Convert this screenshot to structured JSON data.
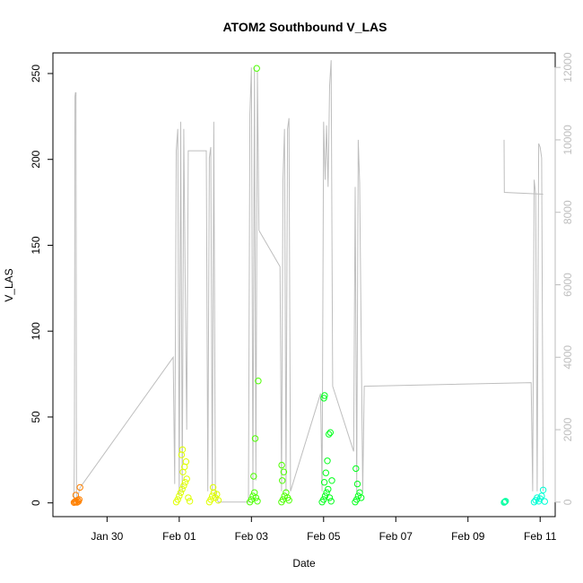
{
  "chart_data": {
    "type": "scatter",
    "title": "ATOM2 Southbound V_LAS",
    "xlabel": "Date",
    "ylabel": "V_LAS",
    "x_unit": "date",
    "xlim": [
      "2020-01-28T12:00",
      "2020-02-11T10:00"
    ],
    "ylim": [
      -8,
      262
    ],
    "y_ticks": [
      0,
      50,
      100,
      150,
      200,
      250
    ],
    "x_ticks": [
      {
        "date": "2020-01-30",
        "label": "Jan 30"
      },
      {
        "date": "2020-02-01",
        "label": "Feb 01"
      },
      {
        "date": "2020-02-03",
        "label": "Feb 03"
      },
      {
        "date": "2020-02-05",
        "label": "Feb 05"
      },
      {
        "date": "2020-02-07",
        "label": "Feb 07"
      },
      {
        "date": "2020-02-09",
        "label": "Feb 09"
      },
      {
        "date": "2020-02-11",
        "label": "Feb 11"
      }
    ],
    "y2lim": [
      -400,
      12400
    ],
    "y2_ticks": [
      0,
      2000,
      4000,
      6000,
      8000,
      10000,
      12000
    ],
    "grid": false,
    "legend": "none",
    "series": [
      {
        "color": "#ff8000",
        "marker": "open-circle",
        "points": [
          [
            "2020-01-29T02:00",
            0.2
          ],
          [
            "2020-01-29T02:30",
            0.6
          ],
          [
            "2020-01-29T03:00",
            0.4
          ],
          [
            "2020-01-29T03:30",
            1.0
          ],
          [
            "2020-01-29T04:00",
            0.3
          ],
          [
            "2020-01-29T04:30",
            1.6
          ],
          [
            "2020-01-29T05:00",
            0.8
          ],
          [
            "2020-01-29T05:30",
            2.0
          ],
          [
            "2020-01-29T03:10",
            4.5
          ],
          [
            "2020-01-29T06:00",
            9.0
          ]
        ]
      },
      {
        "color": "#dfff00",
        "marker": "open-circle",
        "points": [
          [
            "2020-01-31T22:00",
            0.5
          ],
          [
            "2020-01-31T23:00",
            2.0
          ],
          [
            "2020-02-01T00:00",
            4.0
          ],
          [
            "2020-02-01T01:00",
            6.0
          ],
          [
            "2020-02-01T02:00",
            8.0
          ],
          [
            "2020-02-01T03:00",
            10.0
          ],
          [
            "2020-02-01T04:00",
            12.0
          ],
          [
            "2020-02-01T05:00",
            14.0
          ],
          [
            "2020-02-01T06:00",
            3.0
          ],
          [
            "2020-02-01T02:30",
            18.0
          ],
          [
            "2020-02-01T03:30",
            21.0
          ],
          [
            "2020-02-01T04:30",
            24.0
          ],
          [
            "2020-02-01T01:30",
            28.0
          ],
          [
            "2020-02-01T02:10",
            31.0
          ],
          [
            "2020-02-01T07:00",
            1.0
          ],
          [
            "2020-02-01T20:00",
            0.5
          ],
          [
            "2020-02-01T21:00",
            2.0
          ],
          [
            "2020-02-01T22:00",
            4.0
          ],
          [
            "2020-02-01T23:00",
            6.0
          ],
          [
            "2020-02-02T00:00",
            3.0
          ],
          [
            "2020-02-02T01:00",
            5.0
          ],
          [
            "2020-02-02T02:00",
            1.5
          ],
          [
            "2020-02-01T22:30",
            9.0
          ]
        ]
      },
      {
        "color": "#4cff00",
        "marker": "open-circle",
        "points": [
          [
            "2020-02-02T23:00",
            0.5
          ],
          [
            "2020-02-03T00:00",
            2.0
          ],
          [
            "2020-02-03T01:00",
            4.0
          ],
          [
            "2020-02-03T02:00",
            6.0
          ],
          [
            "2020-02-03T03:00",
            3.0
          ],
          [
            "2020-02-03T04:00",
            1.0
          ],
          [
            "2020-02-03T01:30",
            15.5
          ],
          [
            "2020-02-03T02:30",
            37.5
          ],
          [
            "2020-02-03T04:30",
            71.0
          ],
          [
            "2020-02-03T03:30",
            253.0
          ],
          [
            "2020-02-03T20:00",
            0.5
          ],
          [
            "2020-02-03T21:00",
            2.0
          ],
          [
            "2020-02-03T22:00",
            4.0
          ],
          [
            "2020-02-03T23:00",
            6.0
          ],
          [
            "2020-02-04T00:00",
            3.0
          ],
          [
            "2020-02-04T01:00",
            1.5
          ],
          [
            "2020-02-03T20:30",
            13.0
          ],
          [
            "2020-02-03T21:30",
            18.0
          ],
          [
            "2020-02-03T20:10",
            22.0
          ]
        ]
      },
      {
        "color": "#00ff1a",
        "marker": "open-circle",
        "points": [
          [
            "2020-02-04T23:00",
            0.5
          ],
          [
            "2020-02-05T00:00",
            2.0
          ],
          [
            "2020-02-05T01:00",
            4.0
          ],
          [
            "2020-02-05T02:00",
            6.0
          ],
          [
            "2020-02-05T03:00",
            8.0
          ],
          [
            "2020-02-05T04:00",
            3.0
          ],
          [
            "2020-02-05T05:00",
            1.0
          ],
          [
            "2020-02-05T00:30",
            12.0
          ],
          [
            "2020-02-05T01:30",
            17.5
          ],
          [
            "2020-02-05T02:30",
            24.5
          ],
          [
            "2020-02-05T03:30",
            40.0
          ],
          [
            "2020-02-05T04:30",
            41.0
          ],
          [
            "2020-02-05T00:10",
            61.0
          ],
          [
            "2020-02-05T00:40",
            62.5
          ],
          [
            "2020-02-05T05:30",
            13.0
          ],
          [
            "2020-02-05T21:00",
            0.5
          ],
          [
            "2020-02-05T22:00",
            2.0
          ],
          [
            "2020-02-05T23:00",
            4.0
          ],
          [
            "2020-02-06T00:00",
            6.0
          ],
          [
            "2020-02-06T01:00",
            3.0
          ],
          [
            "2020-02-05T22:30",
            11.0
          ],
          [
            "2020-02-05T21:30",
            20.0
          ]
        ]
      },
      {
        "color": "#00ffa0",
        "marker": "open-circle",
        "points": [
          [
            "2020-02-10T00:00",
            0.3
          ],
          [
            "2020-02-10T00:30",
            0.6
          ],
          [
            "2020-02-10T01:00",
            1.0
          ]
        ]
      },
      {
        "color": "#00ffd5",
        "marker": "open-circle",
        "points": [
          [
            "2020-02-10T20:00",
            0.5
          ],
          [
            "2020-02-10T21:00",
            1.5
          ],
          [
            "2020-02-10T22:00",
            3.0
          ],
          [
            "2020-02-10T23:00",
            1.0
          ],
          [
            "2020-02-11T00:00",
            2.5
          ],
          [
            "2020-02-11T01:00",
            4.0
          ],
          [
            "2020-02-11T02:00",
            7.5
          ],
          [
            "2020-02-11T03:00",
            0.8
          ]
        ]
      }
    ],
    "secondary_line": {
      "color": "#bebebe",
      "axis": "right",
      "points": [
        [
          "2020-01-29T02:00",
          0
        ],
        [
          "2020-01-29T02:20",
          2000
        ],
        [
          "2020-01-29T02:40",
          11200
        ],
        [
          "2020-01-29T03:00",
          11300
        ],
        [
          "2020-01-29T03:20",
          11300
        ],
        [
          "2020-01-29T03:40",
          0
        ],
        [
          "2020-01-29T06:00",
          400
        ],
        [
          "2020-01-31T20:00",
          4000
        ],
        [
          "2020-01-31T21:00",
          500
        ],
        [
          "2020-01-31T22:00",
          9700
        ],
        [
          "2020-01-31T23:00",
          10300
        ],
        [
          "2020-02-01T00:00",
          200
        ],
        [
          "2020-02-01T01:00",
          10500
        ],
        [
          "2020-02-01T02:00",
          300
        ],
        [
          "2020-02-01T03:00",
          10300
        ],
        [
          "2020-02-01T04:00",
          6000
        ],
        [
          "2020-02-01T05:00",
          2000
        ],
        [
          "2020-02-01T06:00",
          9700
        ],
        [
          "2020-02-01T18:00",
          9700
        ],
        [
          "2020-02-01T19:00",
          300
        ],
        [
          "2020-02-01T20:00",
          9500
        ],
        [
          "2020-02-01T21:00",
          9800
        ],
        [
          "2020-02-01T22:00",
          300
        ],
        [
          "2020-02-01T23:00",
          10500
        ],
        [
          "2020-02-02T00:00",
          200
        ],
        [
          "2020-02-02T02:00",
          0
        ],
        [
          "2020-02-02T22:00",
          0
        ],
        [
          "2020-02-02T23:00",
          10700
        ],
        [
          "2020-02-03T00:00",
          12000
        ],
        [
          "2020-02-03T01:00",
          300
        ],
        [
          "2020-02-03T02:00",
          12000
        ],
        [
          "2020-02-03T03:00",
          600
        ],
        [
          "2020-02-03T04:00",
          11900
        ],
        [
          "2020-02-03T05:00",
          7500
        ],
        [
          "2020-02-03T19:00",
          6500
        ],
        [
          "2020-02-03T20:00",
          300
        ],
        [
          "2020-02-03T21:00",
          8900
        ],
        [
          "2020-02-03T22:00",
          10300
        ],
        [
          "2020-02-03T23:00",
          300
        ],
        [
          "2020-02-04T00:00",
          10300
        ],
        [
          "2020-02-04T01:00",
          10600
        ],
        [
          "2020-02-04T02:00",
          300
        ],
        [
          "2020-02-04T22:00",
          3000
        ],
        [
          "2020-02-04T23:00",
          300
        ],
        [
          "2020-02-05T00:00",
          10500
        ],
        [
          "2020-02-05T01:00",
          8900
        ],
        [
          "2020-02-05T02:00",
          10400
        ],
        [
          "2020-02-05T03:00",
          8700
        ],
        [
          "2020-02-05T04:00",
          11500
        ],
        [
          "2020-02-05T05:00",
          12200
        ],
        [
          "2020-02-05T06:00",
          3200
        ],
        [
          "2020-02-05T20:00",
          1400
        ],
        [
          "2020-02-05T21:00",
          8700
        ],
        [
          "2020-02-05T22:00",
          300
        ],
        [
          "2020-02-05T23:00",
          10000
        ],
        [
          "2020-02-06T00:00",
          8800
        ],
        [
          "2020-02-06T02:00",
          300
        ],
        [
          "2020-02-06T03:00",
          3200
        ],
        [
          "2020-02-10T18:00",
          3300
        ],
        [
          "2020-02-10T19:00",
          300
        ],
        [
          "2020-02-10T20:00",
          8900
        ],
        [
          "2020-02-10T21:00",
          8500
        ],
        [
          "2020-02-10T22:00",
          300
        ],
        [
          "2020-02-10T23:00",
          9900
        ],
        [
          "2020-02-11T00:00",
          9800
        ],
        [
          "2020-02-11T01:00",
          9500
        ],
        [
          "2020-02-11T02:00",
          300
        ]
      ]
    },
    "secondary_segment": {
      "color": "#bebebe",
      "points": [
        [
          "2020-02-10T00:00",
          10000
        ],
        [
          "2020-02-10T00:10",
          8550
        ],
        [
          "2020-02-11T02:00",
          8500
        ]
      ]
    }
  }
}
